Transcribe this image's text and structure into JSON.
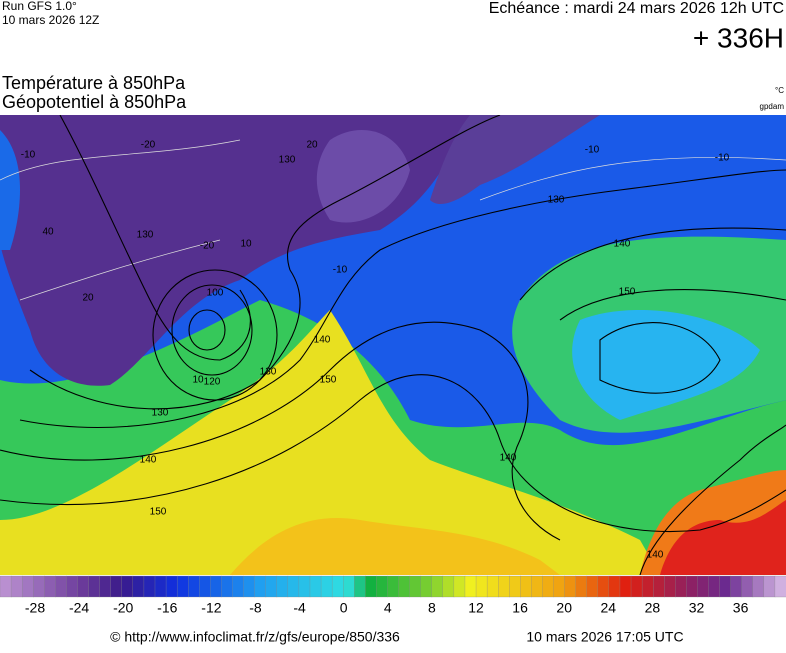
{
  "header": {
    "run": "Run GFS 1.0°",
    "run_date": "10 mars 2026 12Z",
    "forecast": "Echéance : mardi 24 mars 2026 12h UTC",
    "lead": "+ 336H"
  },
  "titles": {
    "line1": "Température à 850hPa",
    "line2": "Géopotentiel à 850hPa",
    "unit_temp": "°C",
    "unit_geo": "gpdam"
  },
  "map": {
    "contour_labels": [
      "-10",
      "-20",
      "130",
      "20",
      "-10",
      "-10",
      "130",
      "140",
      "150",
      "40",
      "130",
      "-20",
      "10",
      "-10",
      "20",
      "100",
      "140",
      "130",
      "150",
      "120",
      "10",
      "130",
      "140",
      "150",
      "140",
      "140"
    ]
  },
  "colorbar": {
    "ticks": [
      -28,
      -24,
      -20,
      -16,
      -12,
      -8,
      -4,
      0,
      4,
      8,
      12,
      16,
      20,
      24,
      28,
      32,
      36
    ]
  },
  "footer": {
    "source": "© http://www.infoclimat.fr/z/gfs/europe/850/336",
    "generated": "10 mars 2026 17:05 UTC"
  }
}
